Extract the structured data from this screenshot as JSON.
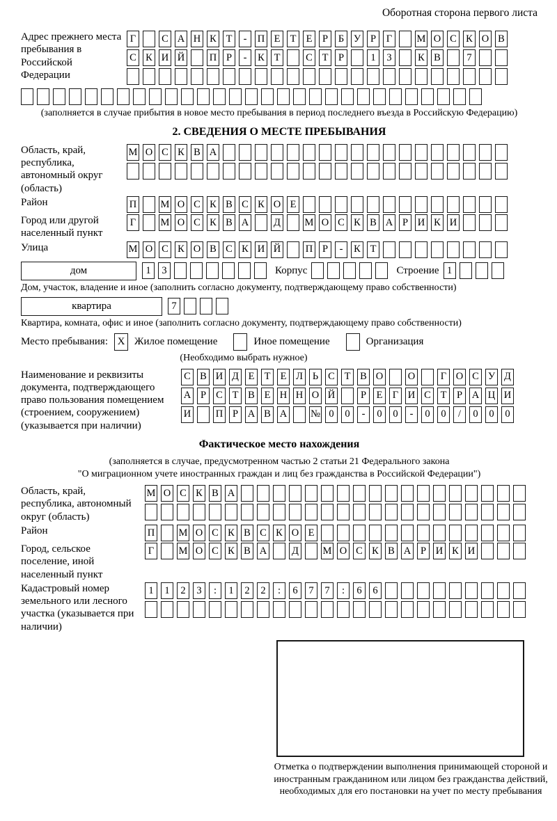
{
  "page": {
    "header_note": "Оборотная сторона первого листа"
  },
  "prev_address": {
    "label": "Адрес прежнего места пребывания в Российской Федерации",
    "rows": [
      [
        "Г",
        "",
        "С",
        "А",
        "Н",
        "К",
        "Т",
        "-",
        "П",
        "Е",
        "Т",
        "Е",
        "Р",
        "Б",
        "У",
        "Р",
        "Г",
        "",
        "М",
        "О",
        "С",
        "К",
        "О",
        "В"
      ],
      [
        "С",
        "К",
        "И",
        "Й",
        "",
        "П",
        "Р",
        "-",
        "К",
        "Т",
        "",
        "С",
        "Т",
        "Р",
        "",
        "1",
        "3",
        "",
        "К",
        "В",
        "",
        "7",
        "",
        ""
      ],
      [
        "",
        "",
        "",
        "",
        "",
        "",
        "",
        "",
        "",
        "",
        "",
        "",
        "",
        "",
        "",
        "",
        "",
        "",
        "",
        "",
        "",
        "",
        "",
        ""
      ]
    ],
    "overflow_row": [
      "",
      "",
      "",
      "",
      "",
      "",
      "",
      "",
      "",
      "",
      "",
      "",
      "",
      "",
      "",
      "",
      "",
      "",
      "",
      "",
      "",
      "",
      "",
      "",
      "",
      "",
      "",
      "",
      ""
    ],
    "caption": "(заполняется в случае прибытия в новое место пребывания в период последнего въезда в Российскую Федерацию)"
  },
  "section2": {
    "title": "2. СВЕДЕНИЯ О МЕСТЕ ПРЕБЫВАНИЯ",
    "region": {
      "label": "Область, край, республика, автономный округ (область)",
      "rows": [
        [
          "М",
          "О",
          "С",
          "К",
          "В",
          "А",
          "",
          "",
          "",
          "",
          "",
          "",
          "",
          "",
          "",
          "",
          "",
          "",
          "",
          "",
          "",
          "",
          "",
          ""
        ],
        [
          "",
          "",
          "",
          "",
          "",
          "",
          "",
          "",
          "",
          "",
          "",
          "",
          "",
          "",
          "",
          "",
          "",
          "",
          "",
          "",
          "",
          "",
          "",
          ""
        ]
      ]
    },
    "district": {
      "label": "Район",
      "row": [
        "П",
        "",
        "М",
        "О",
        "С",
        "К",
        "В",
        "С",
        "К",
        "О",
        "Е",
        "",
        "",
        "",
        "",
        "",
        "",
        "",
        "",
        "",
        "",
        "",
        "",
        ""
      ]
    },
    "city": {
      "label": "Город или другой населенный пункт",
      "row": [
        "Г",
        "",
        "М",
        "О",
        "С",
        "К",
        "В",
        "А",
        "",
        "Д",
        "",
        "М",
        "О",
        "С",
        "К",
        "В",
        "А",
        "Р",
        "И",
        "К",
        "И",
        "",
        "",
        ""
      ]
    },
    "street": {
      "label": "Улица",
      "row": [
        "М",
        "О",
        "С",
        "К",
        "О",
        "В",
        "С",
        "К",
        "И",
        "Й",
        "",
        "П",
        "Р",
        "-",
        "К",
        "Т",
        "",
        "",
        "",
        "",
        "",
        "",
        "",
        ""
      ]
    },
    "house": {
      "box_label": "дом",
      "cells": [
        "1",
        "3",
        "",
        "",
        "",
        "",
        "",
        ""
      ],
      "korpus_label": "Корпус",
      "korpus_cells": [
        "",
        "",
        "",
        "",
        ""
      ],
      "stroenie_label": "Строение",
      "stroenie_cells": [
        "1",
        "",
        "",
        ""
      ]
    },
    "house_caption": "Дом, участок, владение и иное (заполнить согласно документу, подтверждающему право собственности)",
    "apartment": {
      "box_label": "квартира",
      "cells": [
        "7",
        "",
        "",
        ""
      ]
    },
    "apartment_caption": "Квартира, комната, офис и иное (заполнить согласно документу, подтверждающему право собственности)",
    "stay_type": {
      "label": "Место пребывания:",
      "options": [
        {
          "mark": "X",
          "label": "Жилое помещение"
        },
        {
          "mark": "",
          "label": "Иное помещение"
        },
        {
          "mark": "",
          "label": "Организация"
        }
      ]
    },
    "stay_caption": "(Необходимо выбрать нужное)",
    "document": {
      "label": "Наименование и реквизиты документа, подтверждающего право пользования помещением (строением, сооружением) (указывается при наличии)",
      "rows": [
        [
          "С",
          "В",
          "И",
          "Д",
          "Е",
          "Т",
          "Е",
          "Л",
          "Ь",
          "С",
          "Т",
          "В",
          "О",
          "",
          "О",
          "",
          "Г",
          "О",
          "С",
          "У",
          "Д"
        ],
        [
          "А",
          "Р",
          "С",
          "Т",
          "В",
          "Е",
          "Н",
          "Н",
          "О",
          "Й",
          "",
          "Р",
          "Е",
          "Г",
          "И",
          "С",
          "Т",
          "Р",
          "А",
          "Ц",
          "И"
        ],
        [
          "И",
          "",
          "П",
          "Р",
          "А",
          "В",
          "А",
          "",
          "№",
          "0",
          "0",
          "-",
          "0",
          "0",
          "-",
          "0",
          "0",
          "/",
          "0",
          "0",
          "0"
        ]
      ]
    }
  },
  "actual_location": {
    "title": "Фактическое место нахождения",
    "caption_line1": "(заполняется в случае, предусмотренном частью 2 статьи 21 Федерального закона",
    "caption_line2": "\"О миграционном учете иностранных граждан и лиц без гражданства в Российской Федерации\")",
    "region": {
      "label": "Область, край, республика, автономный округ (область)",
      "rows": [
        [
          "М",
          "О",
          "С",
          "К",
          "В",
          "А",
          "",
          "",
          "",
          "",
          "",
          "",
          "",
          "",
          "",
          "",
          "",
          "",
          "",
          "",
          "",
          "",
          "",
          ""
        ],
        [
          "",
          "",
          "",
          "",
          "",
          "",
          "",
          "",
          "",
          "",
          "",
          "",
          "",
          "",
          "",
          "",
          "",
          "",
          "",
          "",
          "",
          "",
          "",
          ""
        ]
      ]
    },
    "district": {
      "label": "Район",
      "row": [
        "П",
        "",
        "М",
        "О",
        "С",
        "К",
        "В",
        "С",
        "К",
        "О",
        "Е",
        "",
        "",
        "",
        "",
        "",
        "",
        "",
        "",
        "",
        "",
        "",
        "",
        ""
      ]
    },
    "city": {
      "label": "Город, сельское поселение, иной населенный пункт",
      "row": [
        "Г",
        "",
        "М",
        "О",
        "С",
        "К",
        "В",
        "А",
        "",
        "Д",
        "",
        "М",
        "О",
        "С",
        "К",
        "В",
        "А",
        "Р",
        "И",
        "К",
        "И",
        "",
        "",
        ""
      ]
    },
    "cadastral": {
      "label": "Кадастровый номер земельного или лесного участка (указывается при наличии)",
      "rows": [
        [
          "1",
          "1",
          "2",
          "3",
          ":",
          "1",
          "2",
          "2",
          ":",
          "6",
          "7",
          "7",
          ":",
          "6",
          "6",
          "",
          "",
          "",
          "",
          "",
          "",
          "",
          "",
          ""
        ],
        [
          "",
          "",
          "",
          "",
          "",
          "",
          "",
          "",
          "",
          "",
          "",
          "",
          "",
          "",
          "",
          "",
          "",
          "",
          "",
          "",
          "",
          "",
          "",
          ""
        ]
      ]
    },
    "stamp_caption": "Отметка о подтверждении выполнения принимающей стороной и иностранным гражданином или лицом без гражданства действий, необходимых для его постановки на учет по месту пребывания"
  }
}
